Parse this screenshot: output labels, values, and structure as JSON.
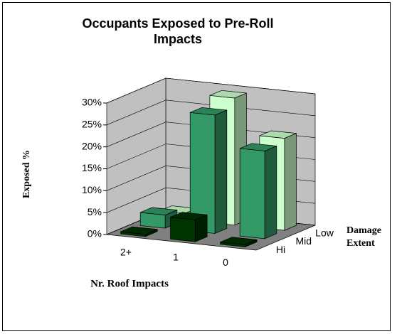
{
  "chart_data": {
    "type": "bar3d",
    "title": "Occupants Exposed to Pre-Roll Impacts",
    "y_label": "Exposed %",
    "x_label": "Nr. Roof Impacts",
    "z_label": "Damage Extent",
    "categories": [
      "2+",
      "1",
      "0"
    ],
    "series": [
      {
        "name": "Low",
        "color": "#ccffcc",
        "values": [
          1.5,
          29,
          21
        ]
      },
      {
        "name": "Mid",
        "color": "#339966",
        "values": [
          3,
          27,
          20
        ]
      },
      {
        "name": "Hi",
        "color": "#003300",
        "values": [
          0.5,
          5,
          0.5
        ]
      }
    ],
    "ylim": [
      0,
      30
    ],
    "yticks": [
      {
        "value": 0,
        "label": "0%"
      },
      {
        "value": 5,
        "label": "5%"
      },
      {
        "value": 10,
        "label": "10%"
      },
      {
        "value": 15,
        "label": "15%"
      },
      {
        "value": 20,
        "label": "20%"
      },
      {
        "value": 25,
        "label": "25%"
      },
      {
        "value": 30,
        "label": "30%"
      }
    ],
    "grid": true
  }
}
